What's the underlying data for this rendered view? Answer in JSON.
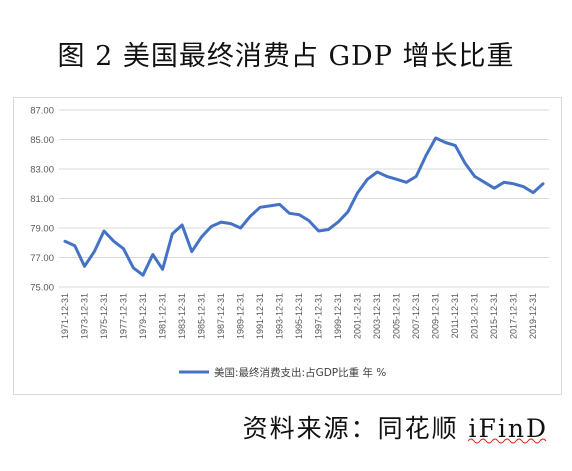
{
  "figure": {
    "title": "图 2 美国最终消费占 GDP 增长比重",
    "source": "资料来源：同花顺 iFinD"
  },
  "chart_data": {
    "type": "line",
    "title": "",
    "xlabel": "",
    "ylabel": "",
    "ylim": [
      75,
      87
    ],
    "yticks": [
      "75.00",
      "77.00",
      "79.00",
      "81.00",
      "83.00",
      "85.00",
      "87.00"
    ],
    "grid": "horizontal",
    "legend_position": "bottom",
    "line_color": "#4472c4",
    "x": [
      "1971-12-31",
      "1972-12-31",
      "1973-12-31",
      "1974-12-31",
      "1975-12-31",
      "1976-12-31",
      "1977-12-31",
      "1978-12-31",
      "1979-12-31",
      "1980-12-31",
      "1981-12-31",
      "1982-12-31",
      "1983-12-31",
      "1984-12-31",
      "1985-12-31",
      "1986-12-31",
      "1987-12-31",
      "1988-12-31",
      "1989-12-31",
      "1990-12-31",
      "1991-12-31",
      "1992-12-31",
      "1993-12-31",
      "1994-12-31",
      "1995-12-31",
      "1996-12-31",
      "1997-12-31",
      "1998-12-31",
      "1999-12-31",
      "2000-12-31",
      "2001-12-31",
      "2002-12-31",
      "2003-12-31",
      "2004-12-31",
      "2005-12-31",
      "2006-12-31",
      "2007-12-31",
      "2008-12-31",
      "2009-12-31",
      "2010-12-31",
      "2011-12-31",
      "2012-12-31",
      "2013-12-31",
      "2014-12-31",
      "2015-12-31",
      "2016-12-31",
      "2017-12-31",
      "2018-12-31",
      "2019-12-31",
      "2020-12-31"
    ],
    "xtick_labels": [
      "1971-12-31",
      "1973-12-31",
      "1975-12-31",
      "1977-12-31",
      "1979-12-31",
      "1981-12-31",
      "1983-12-31",
      "1985-12-31",
      "1987-12-31",
      "1989-12-31",
      "1991-12-31",
      "1993-12-31",
      "1995-12-31",
      "1997-12-31",
      "1999-12-31",
      "2001-12-31",
      "2003-12-31",
      "2005-12-31",
      "2007-12-31",
      "2009-12-31",
      "2011-12-31",
      "2013-12-31",
      "2015-12-31",
      "2017-12-31",
      "2019-12-31"
    ],
    "series": [
      {
        "name": "美国:最终消费支出:占GDP比重 年 %",
        "values": [
          78.1,
          77.8,
          76.4,
          77.4,
          78.8,
          78.1,
          77.6,
          76.3,
          75.8,
          77.2,
          76.2,
          78.6,
          79.2,
          77.4,
          78.4,
          79.1,
          79.4,
          79.3,
          79.0,
          79.8,
          80.4,
          80.5,
          80.6,
          80.0,
          79.9,
          79.5,
          78.8,
          78.9,
          79.4,
          80.1,
          81.4,
          82.3,
          82.8,
          82.5,
          82.3,
          82.1,
          82.5,
          83.9,
          85.1,
          84.8,
          84.6,
          83.4,
          82.5,
          82.1,
          81.7,
          82.1,
          82.0,
          81.8,
          81.4,
          82.0
        ]
      }
    ]
  }
}
